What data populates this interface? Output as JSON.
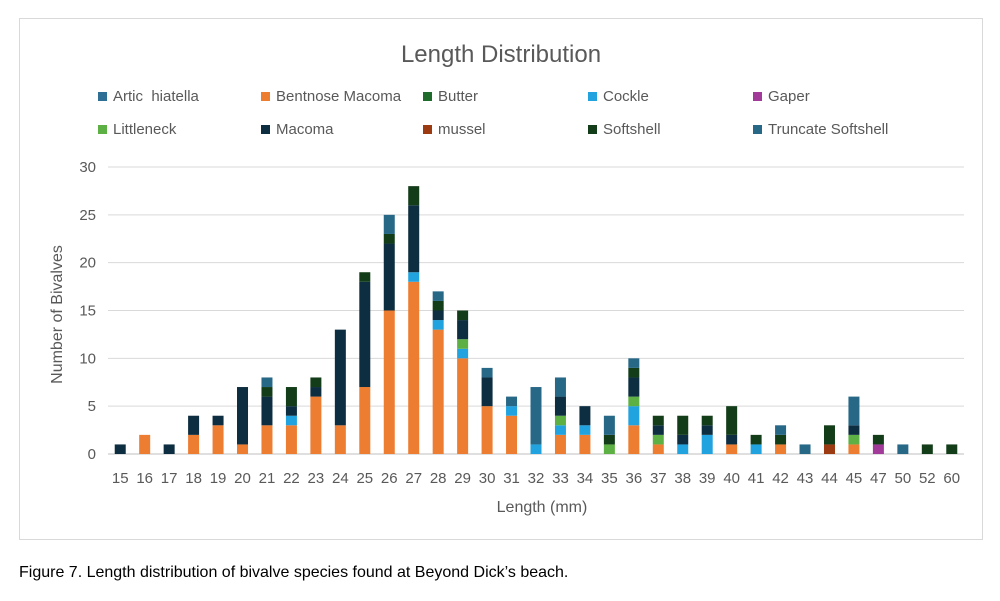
{
  "chart_data": {
    "type": "bar",
    "stacked": true,
    "title": "Length Distribution",
    "xlabel": "Length (mm)",
    "ylabel": "Number of Bivalves",
    "ylim": [
      0,
      30
    ],
    "yticks": [
      0,
      5,
      10,
      15,
      20,
      25,
      30
    ],
    "grid": true,
    "legend_position": "top",
    "categories": [
      "15",
      "16",
      "17",
      "18",
      "19",
      "20",
      "21",
      "22",
      "23",
      "24",
      "25",
      "26",
      "27",
      "28",
      "29",
      "30",
      "31",
      "32",
      "33",
      "34",
      "35",
      "36",
      "37",
      "38",
      "39",
      "40",
      "41",
      "42",
      "43",
      "44",
      "45",
      "47",
      "50",
      "52",
      "60"
    ],
    "series": [
      {
        "name": "Artic  hiatella",
        "color": "#2e6f96",
        "values": [
          0,
          0,
          0,
          0,
          0,
          0,
          0,
          0,
          0,
          0,
          0,
          0,
          0,
          0,
          0,
          0,
          0,
          0,
          0,
          0,
          0,
          0,
          0,
          0,
          0,
          0,
          0,
          0,
          0,
          0,
          0,
          0,
          0,
          0,
          0
        ]
      },
      {
        "name": "Bentnose Macoma",
        "color": "#ed7d31",
        "values": [
          0,
          2,
          0,
          2,
          3,
          1,
          3,
          3,
          6,
          3,
          7,
          15,
          18,
          13,
          10,
          5,
          4,
          0,
          2,
          2,
          0,
          3,
          1,
          0,
          0,
          1,
          0,
          1,
          0,
          0,
          1,
          0,
          0,
          0,
          0
        ]
      },
      {
        "name": "Butter",
        "color": "#1e6b2c",
        "values": [
          0,
          0,
          0,
          0,
          0,
          0,
          0,
          0,
          0,
          0,
          0,
          0,
          0,
          0,
          0,
          0,
          0,
          0,
          0,
          0,
          0,
          0,
          0,
          0,
          0,
          0,
          0,
          0,
          0,
          0,
          0,
          0,
          0,
          0,
          0
        ]
      },
      {
        "name": "Cockle",
        "color": "#21a3e0",
        "values": [
          0,
          0,
          0,
          0,
          0,
          0,
          0,
          1,
          0,
          0,
          0,
          0,
          1,
          1,
          1,
          0,
          1,
          1,
          1,
          1,
          0,
          2,
          0,
          1,
          2,
          0,
          1,
          0,
          0,
          0,
          0,
          0,
          0,
          0,
          0
        ]
      },
      {
        "name": "Gaper",
        "color": "#a23a9a",
        "values": [
          0,
          0,
          0,
          0,
          0,
          0,
          0,
          0,
          0,
          0,
          0,
          0,
          0,
          0,
          0,
          0,
          0,
          0,
          0,
          0,
          0,
          0,
          0,
          0,
          0,
          0,
          0,
          0,
          0,
          0,
          0,
          1,
          0,
          0,
          0
        ]
      },
      {
        "name": "Littleneck",
        "color": "#5db043",
        "values": [
          0,
          0,
          0,
          0,
          0,
          0,
          0,
          0,
          0,
          0,
          0,
          0,
          0,
          0,
          1,
          0,
          0,
          0,
          1,
          0,
          1,
          1,
          1,
          0,
          0,
          0,
          0,
          0,
          0,
          0,
          1,
          0,
          0,
          0,
          0
        ]
      },
      {
        "name": "Macoma",
        "color": "#0d2d40",
        "values": [
          1,
          0,
          1,
          2,
          1,
          6,
          3,
          1,
          1,
          10,
          11,
          7,
          7,
          1,
          2,
          3,
          0,
          0,
          2,
          2,
          0,
          2,
          1,
          1,
          1,
          1,
          0,
          0,
          0,
          0,
          1,
          0,
          0,
          0,
          0
        ]
      },
      {
        "name": "mussel",
        "color": "#9c3a12",
        "values": [
          0,
          0,
          0,
          0,
          0,
          0,
          0,
          0,
          0,
          0,
          0,
          0,
          0,
          0,
          0,
          0,
          0,
          0,
          0,
          0,
          0,
          0,
          0,
          0,
          0,
          0,
          0,
          0,
          0,
          1,
          0,
          0,
          0,
          0,
          0
        ]
      },
      {
        "name": "Softshell",
        "color": "#133d19",
        "values": [
          0,
          0,
          0,
          0,
          0,
          0,
          1,
          2,
          1,
          0,
          1,
          1,
          2,
          1,
          1,
          0,
          0,
          0,
          0,
          0,
          1,
          1,
          1,
          2,
          1,
          3,
          1,
          1,
          0,
          2,
          0,
          1,
          0,
          1,
          1
        ]
      },
      {
        "name": "Truncate Softshell",
        "color": "#276887",
        "values": [
          0,
          0,
          0,
          0,
          0,
          0,
          1,
          0,
          0,
          0,
          0,
          2,
          0,
          1,
          0,
          1,
          1,
          6,
          2,
          0,
          2,
          1,
          0,
          0,
          0,
          0,
          0,
          1,
          1,
          0,
          3,
          0,
          1,
          0,
          0
        ]
      }
    ]
  },
  "caption": "Figure 7. Length distribution of bivalve species found at Beyond Dick’s beach."
}
